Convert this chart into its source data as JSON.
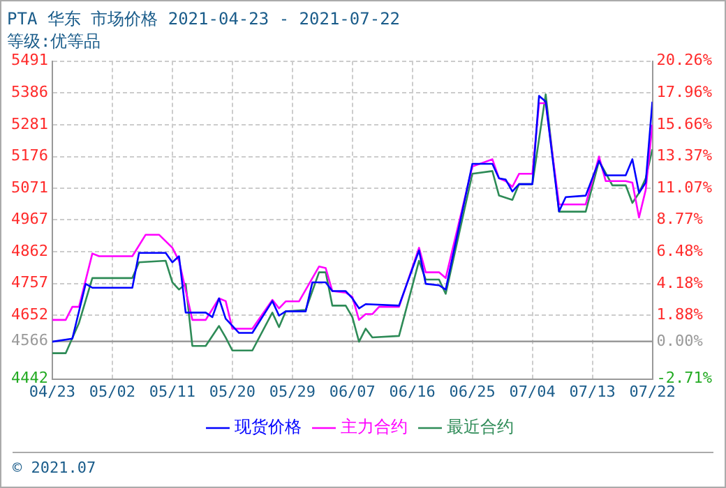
{
  "chart_data": {
    "type": "line",
    "title": "PTA 华东 市场价格 2021-04-23 - 2021-07-22",
    "subtitle": "等级:优等品",
    "annotations": [
      "© 2021.07"
    ],
    "xlim": [
      "2021-04-23",
      "2021-07-22"
    ],
    "xticks": [
      {
        "value": "2021-04-23",
        "label": "04/23"
      },
      {
        "value": "2021-05-02",
        "label": "05/02"
      },
      {
        "value": "2021-05-11",
        "label": "05/11"
      },
      {
        "value": "2021-05-20",
        "label": "05/20"
      },
      {
        "value": "2021-05-29",
        "label": "05/29"
      },
      {
        "value": "2021-06-07",
        "label": "06/07"
      },
      {
        "value": "2021-06-16",
        "label": "06/16"
      },
      {
        "value": "2021-06-25",
        "label": "06/25"
      },
      {
        "value": "2021-07-04",
        "label": "07/04"
      },
      {
        "value": "2021-07-13",
        "label": "07/13"
      },
      {
        "value": "2021-07-22",
        "label": "07/22"
      }
    ],
    "ylim": [
      4442,
      5491
    ],
    "yticks": [
      4442,
      4566,
      4652,
      4757,
      4862,
      4967,
      5071,
      5176,
      5281,
      5386,
      5491
    ],
    "y2lim": [
      -2.71,
      20.26
    ],
    "y2ticks": [
      {
        "value": -2.71,
        "label": "-2.71%"
      },
      {
        "value": 0,
        "label": "0.00%"
      },
      {
        "value": 1.88,
        "label": "1.88%"
      },
      {
        "value": 4.18,
        "label": "4.18%"
      },
      {
        "value": 6.48,
        "label": "6.48%"
      },
      {
        "value": 8.77,
        "label": "8.77%"
      },
      {
        "value": 11.07,
        "label": "11.07%"
      },
      {
        "value": 13.37,
        "label": "13.37%"
      },
      {
        "value": 15.66,
        "label": "15.66%"
      },
      {
        "value": 17.96,
        "label": "17.96%"
      },
      {
        "value": 20.26,
        "label": "20.26%"
      }
    ],
    "ref_lines": [
      {
        "axis": "y",
        "value": 4566,
        "color": "#999999"
      }
    ],
    "grid": true,
    "legend": "bottom",
    "marker": "none",
    "line_style": "solid",
    "series": [
      {
        "name": "现货价格",
        "color": "#0000ff",
        "x": [
          "2021-04-23",
          "2021-04-26",
          "2021-04-28",
          "2021-04-29",
          "2021-05-05",
          "2021-05-06",
          "2021-05-10",
          "2021-05-11",
          "2021-05-12",
          "2021-05-13",
          "2021-05-16",
          "2021-05-17",
          "2021-05-18",
          "2021-05-19",
          "2021-05-21",
          "2021-05-23",
          "2021-05-26",
          "2021-05-27",
          "2021-05-28",
          "2021-05-31",
          "2021-06-01",
          "2021-06-03",
          "2021-06-04",
          "2021-06-06",
          "2021-06-07",
          "2021-06-08",
          "2021-06-09",
          "2021-06-14",
          "2021-06-17",
          "2021-06-18",
          "2021-06-20",
          "2021-06-21",
          "2021-06-25",
          "2021-06-28",
          "2021-06-29",
          "2021-06-30",
          "2021-07-01",
          "2021-07-02",
          "2021-07-04",
          "2021-07-05",
          "2021-07-06",
          "2021-07-08",
          "2021-07-09",
          "2021-07-12",
          "2021-07-14",
          "2021-07-15",
          "2021-07-18",
          "2021-07-19",
          "2021-07-20",
          "2021-07-21",
          "2021-07-22"
        ],
        "values": [
          4565,
          4575,
          4756,
          4743,
          4743,
          4858,
          4858,
          4827,
          4847,
          4661,
          4661,
          4646,
          4708,
          4641,
          4594,
          4594,
          4699,
          4651,
          4665,
          4665,
          4761,
          4761,
          4732,
          4732,
          4708,
          4675,
          4689,
          4684,
          4866,
          4756,
          4751,
          4737,
          5152,
          5152,
          5104,
          5100,
          5061,
          5085,
          5085,
          5376,
          5357,
          4995,
          5042,
          5047,
          5162,
          5114,
          5114,
          5167,
          5056,
          5090,
          5357
        ]
      },
      {
        "name": "主力合约",
        "color": "#ff00ff",
        "x": [
          "2021-04-23",
          "2021-04-25",
          "2021-04-26",
          "2021-04-27",
          "2021-04-29",
          "2021-04-30",
          "2021-05-05",
          "2021-05-07",
          "2021-05-09",
          "2021-05-11",
          "2021-05-12",
          "2021-05-14",
          "2021-05-16",
          "2021-05-18",
          "2021-05-19",
          "2021-05-20",
          "2021-05-23",
          "2021-05-26",
          "2021-05-27",
          "2021-05-28",
          "2021-05-30",
          "2021-06-02",
          "2021-06-03",
          "2021-06-04",
          "2021-06-06",
          "2021-06-07",
          "2021-06-08",
          "2021-06-09",
          "2021-06-10",
          "2021-06-11",
          "2021-06-14",
          "2021-06-17",
          "2021-06-18",
          "2021-06-20",
          "2021-06-21",
          "2021-06-25",
          "2021-06-28",
          "2021-06-29",
          "2021-06-30",
          "2021-07-01",
          "2021-07-02",
          "2021-07-04",
          "2021-07-05",
          "2021-07-06",
          "2021-07-08",
          "2021-07-09",
          "2021-07-12",
          "2021-07-14",
          "2021-07-15",
          "2021-07-18",
          "2021-07-19",
          "2021-07-20",
          "2021-07-21",
          "2021-07-22"
        ],
        "values": [
          4637,
          4637,
          4680,
          4680,
          4856,
          4847,
          4847,
          4918,
          4918,
          4875,
          4832,
          4637,
          4637,
          4708,
          4699,
          4608,
          4608,
          4703,
          4675,
          4698,
          4698,
          4813,
          4808,
          4732,
          4727,
          4713,
          4637,
          4656,
          4656,
          4680,
          4680,
          4875,
          4794,
          4794,
          4775,
          5143,
          5167,
          5104,
          5095,
          5076,
          5119,
          5119,
          5352,
          5352,
          5018,
          5018,
          5018,
          5176,
          5095,
          5095,
          5090,
          4975,
          5066,
          5281
        ]
      },
      {
        "name": "最近合约",
        "color": "#2e8b57",
        "x": [
          "2021-04-23",
          "2021-04-25",
          "2021-04-27",
          "2021-04-29",
          "2021-05-05",
          "2021-05-06",
          "2021-05-10",
          "2021-05-11",
          "2021-05-12",
          "2021-05-13",
          "2021-05-14",
          "2021-05-16",
          "2021-05-18",
          "2021-05-19",
          "2021-05-20",
          "2021-05-23",
          "2021-05-26",
          "2021-05-27",
          "2021-05-28",
          "2021-05-31",
          "2021-06-02",
          "2021-06-03",
          "2021-06-04",
          "2021-06-06",
          "2021-06-07",
          "2021-06-08",
          "2021-06-09",
          "2021-06-10",
          "2021-06-14",
          "2021-06-17",
          "2021-06-18",
          "2021-06-20",
          "2021-06-21",
          "2021-06-25",
          "2021-06-28",
          "2021-06-29",
          "2021-07-01",
          "2021-07-02",
          "2021-07-04",
          "2021-07-06",
          "2021-07-08",
          "2021-07-12",
          "2021-07-14",
          "2021-07-16",
          "2021-07-18",
          "2021-07-19",
          "2021-07-20",
          "2021-07-21",
          "2021-07-22"
        ],
        "values": [
          4527,
          4527,
          4627,
          4775,
          4775,
          4827,
          4832,
          4761,
          4737,
          4756,
          4551,
          4551,
          4617,
          4579,
          4536,
          4536,
          4661,
          4613,
          4665,
          4670,
          4794,
          4794,
          4684,
          4684,
          4646,
          4565,
          4608,
          4579,
          4584,
          4832,
          4770,
          4770,
          4723,
          5119,
          5128,
          5047,
          5033,
          5085,
          5085,
          5381,
          4994,
          4994,
          5162,
          5081,
          5081,
          5023,
          5056,
          5104,
          5200
        ]
      }
    ]
  }
}
